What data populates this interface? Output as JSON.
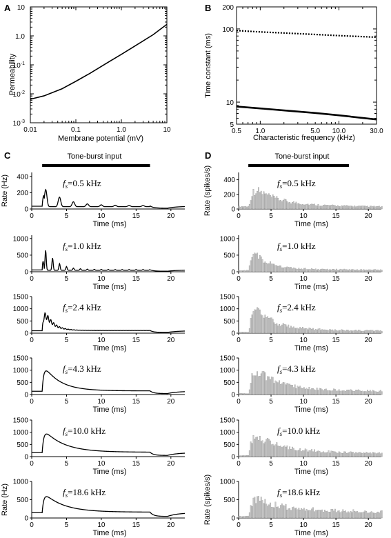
{
  "colors": {
    "ink": "#000000",
    "bars": "#c8c8c8",
    "bar_stroke": "#8c8c8c"
  },
  "chart_data": [
    {
      "panel": "A",
      "type": "line",
      "xscale": "log",
      "yscale": "log",
      "xlabel": "Membrane potential (mV)",
      "ylabel": "Permeability",
      "xlim": [
        0.01,
        10
      ],
      "ylim": [
        0.001,
        10
      ],
      "xticks": [
        0.01,
        0.1,
        1.0,
        10
      ],
      "xtick_labels": [
        "0.01",
        "0.1",
        "1.0",
        "10"
      ],
      "yticks": [
        0.001,
        0.01,
        0.1,
        1.0,
        10
      ],
      "series": [
        {
          "x": [
            0.01,
            0.02,
            0.05,
            0.1,
            0.2,
            0.5,
            1,
            2,
            5,
            10
          ],
          "y": [
            0.0065,
            0.0085,
            0.015,
            0.027,
            0.05,
            0.12,
            0.23,
            0.45,
            1.1,
            2.5
          ]
        }
      ]
    },
    {
      "panel": "B",
      "type": "line",
      "xscale": "log",
      "yscale": "log",
      "xlabel": "Characteristic frequency (kHz)",
      "ylabel": "Time constant (ms)",
      "xlim": [
        0.5,
        30
      ],
      "ylim": [
        5,
        200
      ],
      "xticks": [
        0.5,
        1.0,
        5.0,
        10.0,
        30.0
      ],
      "xtick_labels": [
        "0.5",
        "1.0",
        "5.0",
        "10.0",
        "30.0"
      ],
      "yticks": [
        5,
        10,
        100,
        200
      ],
      "ytick_labels": [
        "5",
        "10",
        "100",
        "200"
      ],
      "series": [
        {
          "style": "dotted",
          "x": [
            0.5,
            1,
            2,
            5,
            10,
            30
          ],
          "y": [
            95,
            91,
            88,
            84,
            81,
            77
          ]
        },
        {
          "style": "solid",
          "x": [
            0.5,
            1,
            2,
            5,
            10,
            30
          ],
          "y": [
            8.7,
            8.2,
            7.7,
            7.1,
            6.6,
            5.8
          ]
        }
      ]
    }
  ],
  "psth": {
    "xlabel": "Time (ms)",
    "xlim": [
      0,
      22
    ],
    "xticks": [
      0,
      5,
      10,
      15,
      20
    ],
    "stim_on": 1.5,
    "stim_off": 17.0,
    "model": {
      "letter": "C",
      "tone_label": "Tone-burst input",
      "rows": [
        {
          "fs_prefix": "f",
          "fs_sub": "s",
          "fs_value": "=0.5 kHz",
          "ylabel": "Rate (Hz)",
          "ylim": [
            0,
            450
          ],
          "yticks": [
            0,
            200,
            400
          ],
          "peak": 320,
          "steady": 38,
          "tau": 2.5,
          "osc_amp": 0.8,
          "freq": 0.5
        },
        {
          "fs_prefix": "f",
          "fs_sub": "s",
          "fs_value": "=1.0 kHz",
          "ylabel": "",
          "ylim": [
            0,
            1100
          ],
          "yticks": [
            0,
            500,
            1000
          ],
          "peak": 1000,
          "steady": 60,
          "tau": 1.5,
          "osc_amp": 1.0,
          "freq": 1.0
        },
        {
          "fs_prefix": "f",
          "fs_sub": "s",
          "fs_value": "=2.4 kHz",
          "ylabel": "",
          "ylim": [
            0,
            1500
          ],
          "yticks": [
            0,
            500,
            1000,
            1500
          ],
          "peak": 1380,
          "steady": 110,
          "tau": 1.2,
          "osc_amp": 0.35,
          "freq": 2.4
        },
        {
          "fs_prefix": "f",
          "fs_sub": "s",
          "fs_value": "=4.3 kHz",
          "ylabel": "",
          "ylim": [
            0,
            1500
          ],
          "yticks": [
            0,
            500,
            1000,
            1500
          ],
          "peak": 1320,
          "steady": 150,
          "tau": 2.3,
          "osc_amp": 0,
          "freq": 4.3
        },
        {
          "fs_prefix": "f",
          "fs_sub": "s",
          "fs_value": "=10.0 kHz",
          "ylabel": "",
          "ylim": [
            0,
            1500
          ],
          "yticks": [
            0,
            500,
            1000,
            1500
          ],
          "peak": 1200,
          "steady": 180,
          "tau": 2.8,
          "osc_amp": 0,
          "freq": 10.0
        },
        {
          "fs_prefix": "f",
          "fs_sub": "s",
          "fs_value": "=18.6 kHz",
          "ylabel": "Rate (Hz)",
          "ylim": [
            0,
            1000
          ],
          "yticks": [
            0,
            500,
            1000
          ],
          "peak": 740,
          "steady": 160,
          "tau": 2.8,
          "osc_amp": 0,
          "freq": 18.6
        }
      ]
    },
    "data": {
      "letter": "D",
      "tone_label": "Tone-burst input",
      "rows": [
        {
          "fs_prefix": "f",
          "fs_sub": "s",
          "fs_value": "=0.5 kHz",
          "ylabel": "Rate (spikes/s)",
          "ylim": [
            0,
            500
          ],
          "yticks": [
            0,
            200,
            400
          ],
          "peak": 370,
          "steady": 50,
          "tau": 3.5,
          "pre": 35
        },
        {
          "fs_prefix": "f",
          "fs_sub": "s",
          "fs_value": "=1.0 kHz",
          "ylabel": "",
          "ylim": [
            0,
            1100
          ],
          "yticks": [
            0,
            500,
            1000
          ],
          "peak": 950,
          "steady": 90,
          "tau": 2.0,
          "pre": 40
        },
        {
          "fs_prefix": "f",
          "fs_sub": "s",
          "fs_value": "=2.4 kHz",
          "ylabel": "",
          "ylim": [
            0,
            1500
          ],
          "yticks": [
            0,
            500,
            1000,
            1500
          ],
          "peak": 1350,
          "steady": 150,
          "tau": 3.0,
          "pre": 45
        },
        {
          "fs_prefix": "f",
          "fs_sub": "s",
          "fs_value": "=4.3 kHz",
          "ylabel": "",
          "ylim": [
            0,
            1500
          ],
          "yticks": [
            0,
            500,
            1000,
            1500
          ],
          "peak": 1300,
          "steady": 220,
          "tau": 3.5,
          "pre": 45
        },
        {
          "fs_prefix": "f",
          "fs_sub": "s",
          "fs_value": "=10.0 kHz",
          "ylabel": "",
          "ylim": [
            0,
            1500
          ],
          "yticks": [
            0,
            500,
            1000,
            1500
          ],
          "peak": 1200,
          "steady": 220,
          "tau": 3.5,
          "pre": 45
        },
        {
          "fs_prefix": "f",
          "fs_sub": "s",
          "fs_value": "=18.6 kHz",
          "ylabel": "Rate (spikes/s)",
          "ylim": [
            0,
            1000
          ],
          "yticks": [
            0,
            500,
            1000
          ],
          "peak": 720,
          "steady": 260,
          "tau": 3.0,
          "pre": 45
        }
      ]
    }
  }
}
